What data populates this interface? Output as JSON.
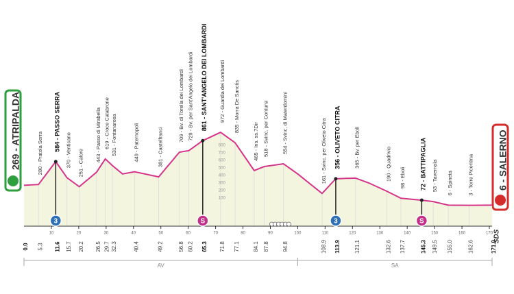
{
  "chart_data": {
    "type": "area",
    "x": [
      0,
      5.3,
      11.6,
      15.7,
      20.2,
      26.5,
      29.7,
      32.3,
      36,
      40.4,
      49.2,
      56.8,
      60.2,
      65.3,
      71.8,
      77.1,
      84.1,
      87.8,
      94.8,
      100,
      108.9,
      113.9,
      121.1,
      126,
      132.6,
      137.7,
      145.3,
      149.5,
      155,
      162.6,
      171
    ],
    "x_labels": [
      "0.0",
      "5.3",
      "11.6",
      "15.7",
      "20.2",
      "26.5",
      "29.7",
      "32.3",
      null,
      "40.4",
      "49.2",
      "56.8",
      "60.2",
      "65.3",
      "71.8",
      "77.1",
      "84.1",
      "87.8",
      "94.8",
      null,
      "108.9",
      "113.9",
      "121.1",
      null,
      "132.6",
      "137.7",
      "145.3",
      "149.5",
      "155.0",
      "162.6",
      "171.0"
    ],
    "values": [
      269,
      280,
      584,
      370,
      251,
      443,
      619,
      531,
      420,
      449,
      381,
      709,
      729,
      861,
      972,
      835,
      465,
      518,
      554,
      420,
      161,
      356,
      365,
      300,
      190,
      98,
      72,
      53,
      6,
      3,
      6
    ],
    "annotations": [
      null,
      "280 - Pratola Serra",
      "584 - PASSO SERRA",
      "370 - Venticano",
      "251 - Calore",
      "443 - Passo di Mirabella",
      "619 - Croce Calabrone",
      "531 - Fontanarosa",
      null,
      "449 - Paternopoli",
      "381 - Castelfranci",
      "709 - Bv. di Torella dei Lombardi",
      "729 - Bv. per Sant'Angelo dei Lombardi",
      "861 - SANT'ANGELO DEI LOMBARDI",
      "972 - Guardia dei Lombardi",
      "835 - Morra De Sanctis",
      "465 - Ins. ss.7Dir",
      "518 - Svinc. per Contursi",
      "554 - Svinc. di Materdomini",
      null,
      "161 - Svinc. per Oliveto Citra",
      "356 - OLIVETO CITRA",
      "365 - Bv. per Eboli",
      null,
      "190 - Quadrivio",
      "98 - Eboli",
      "72 - BATTIPAGLIA",
      "53 - Tavernola",
      "6 - Spineta",
      "3 - Torre Picentina",
      null
    ],
    "bold": [
      false,
      false,
      true,
      false,
      false,
      false,
      false,
      false,
      false,
      false,
      false,
      false,
      false,
      true,
      false,
      false,
      false,
      false,
      false,
      false,
      false,
      true,
      false,
      false,
      false,
      false,
      true,
      false,
      false,
      false,
      false
    ],
    "start": "269 - ATRIPALDA",
    "finish": "6 - SALERNO",
    "xlim": [
      0,
      171
    ],
    "xticks": [
      10,
      20,
      30,
      40,
      50,
      60,
      70,
      80,
      90,
      100,
      110,
      120,
      130,
      140,
      150,
      160,
      170
    ],
    "ylim": [
      0,
      1000
    ],
    "yticks": [
      100,
      200,
      300,
      400,
      500,
      600,
      700,
      800
    ],
    "color": "#d6338a",
    "fill": "#f3f5de",
    "markers": [
      {
        "x": 11.6,
        "label": "3",
        "color": "#2d6fb7"
      },
      {
        "x": 65.3,
        "label": "S",
        "color": "#c2308a"
      },
      {
        "x": 113.9,
        "label": "3",
        "color": "#2d6fb7"
      },
      {
        "x": 145.3,
        "label": "S",
        "color": "#c2308a"
      }
    ],
    "regions": [
      {
        "name": "AV",
        "from": 0,
        "to": 100
      },
      {
        "name": "SA",
        "from": 100,
        "to": 171
      }
    ],
    "logo": "SDS"
  }
}
